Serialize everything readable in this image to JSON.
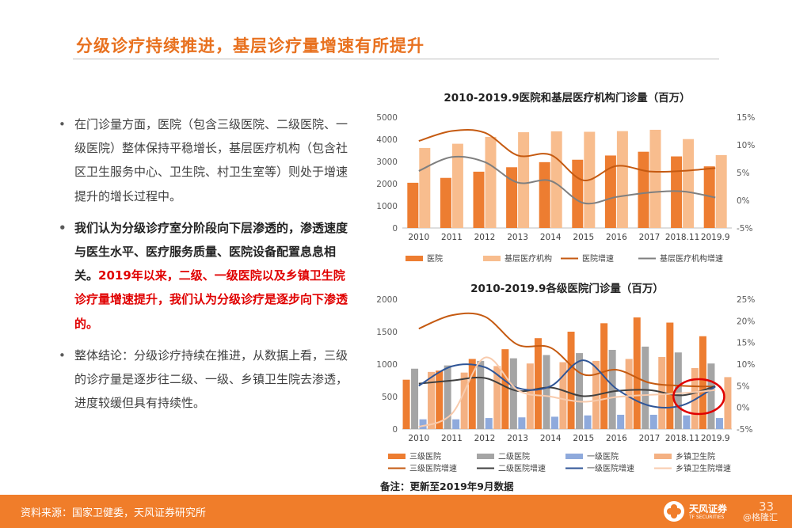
{
  "page": {
    "title": "分级诊疗持续推进，基层诊疗量增速有所提升",
    "bullets": [
      {
        "text": "在门诊量方面，医院（包含三级医院、二级医院、一级医院）整体保持平稳增长，基层医疗机构（包含社区卫生服务中心、卫生院、村卫生室等）则处于增速提升的增长过程中。"
      },
      {
        "text": "我们认为分级诊疗室分阶段向下层渗透的，渗透速度与医生水平、医疗服务质量、医院设备配置息息相关。",
        "highlight": "2019年以来，二级、一级医院以及乡镇卫生院诊疗量增速提升，我们认为分级诊疗是逐步向下渗透的。"
      },
      {
        "text": "整体结论：分级诊疗持续在推进，从数据上看，三级的诊疗量是逐步往二级、一级、乡镇卫生院去渗透，进度较缓但具有持续性。"
      }
    ],
    "note": "备注：更新至2019年9月数据",
    "source": "资料来源：国家卫健委，天风证券研究所",
    "logo_cn": "天风证券",
    "logo_en": "TF SECURITIES",
    "page_number": "33",
    "watermark": "@格隆汇",
    "colors": {
      "accent": "#e8711f",
      "footer": "#f07d2a",
      "highlight_text": "#e00000"
    }
  },
  "chart_data": [
    {
      "type": "bar",
      "title": "2010-2019.9医院和基层医疗机构门诊量（百万）",
      "categories": [
        "2010",
        "2011",
        "2012",
        "2013",
        "2014",
        "2015",
        "2016",
        "2017",
        "2018.11",
        "2019.9"
      ],
      "ylim": [
        0,
        5000
      ],
      "yticks": [
        0,
        1000,
        2000,
        3000,
        4000,
        5000
      ],
      "y2lim": [
        -5,
        15
      ],
      "y2ticks": [
        "-5%",
        "0%",
        "5%",
        "10%",
        "15%"
      ],
      "legend_position": "bottom",
      "series": [
        {
          "name": "医院",
          "kind": "bar",
          "axis": "left",
          "color": "#ed7d31",
          "values": [
            2040,
            2260,
            2540,
            2740,
            2970,
            3080,
            3270,
            3440,
            3230,
            2780
          ]
        },
        {
          "name": "基层医疗机构",
          "kind": "bar",
          "axis": "left",
          "color": "#f8bd8e",
          "values": [
            3610,
            3800,
            4110,
            4320,
            4360,
            4340,
            4370,
            4430,
            4010,
            3290
          ]
        },
        {
          "name": "医院增速",
          "kind": "line",
          "axis": "right",
          "color": "#c55a11",
          "values": [
            10.7,
            12.5,
            12.2,
            8.1,
            8.2,
            3.6,
            6.2,
            5.2,
            5.3,
            5.8
          ]
        },
        {
          "name": "基层医疗机构增速",
          "kind": "line",
          "axis": "right",
          "color": "#7f7f7f",
          "values": [
            5.3,
            7.8,
            6.9,
            3.2,
            3.5,
            -0.5,
            0.6,
            1.4,
            1.6,
            0.5
          ]
        }
      ]
    },
    {
      "type": "bar",
      "title": "2010-2019.9各级医院门诊量（百万）",
      "categories": [
        "2010",
        "2011",
        "2012",
        "2013",
        "2014",
        "2015",
        "2016",
        "2017",
        "2018.11",
        "2019.9"
      ],
      "ylim": [
        0,
        2000
      ],
      "yticks": [
        0,
        500,
        1000,
        1500,
        2000
      ],
      "y2lim": [
        -5,
        25
      ],
      "y2ticks": [
        "-5%",
        "0%",
        "5%",
        "10%",
        "15%",
        "20%",
        "25%"
      ],
      "legend_position": "bottom",
      "series": [
        {
          "name": "三级医院",
          "kind": "bar",
          "axis": "left",
          "color": "#ed7d31",
          "values": [
            760,
            900,
            1080,
            1230,
            1400,
            1500,
            1630,
            1720,
            1640,
            1430
          ]
        },
        {
          "name": "二级医院",
          "kind": "bar",
          "axis": "left",
          "color": "#a5a5a5",
          "values": [
            930,
            980,
            1050,
            1090,
            1140,
            1170,
            1220,
            1270,
            1180,
            1010
          ]
        },
        {
          "name": "一级医院",
          "kind": "bar",
          "axis": "left",
          "color": "#8faadc",
          "values": [
            150,
            150,
            170,
            180,
            190,
            210,
            220,
            220,
            210,
            170
          ]
        },
        {
          "name": "乡镇卫生院",
          "kind": "bar",
          "axis": "left",
          "color": "#f4b183",
          "values": [
            880,
            870,
            970,
            1010,
            1030,
            1050,
            1080,
            1110,
            940,
            800
          ]
        },
        {
          "name": "三级医院增速",
          "kind": "line",
          "axis": "right",
          "color": "#c55a11",
          "values": [
            18.2,
            21.3,
            21.0,
            14.5,
            13.8,
            7.6,
            8.7,
            5.7,
            5.0,
            4.8
          ]
        },
        {
          "name": "二级医院增速",
          "kind": "line",
          "axis": "right",
          "color": "#404040",
          "values": [
            5.5,
            6.2,
            6.8,
            3.8,
            4.6,
            2.6,
            3.8,
            4.0,
            2.8,
            4.9
          ]
        },
        {
          "name": "一级医院增速",
          "kind": "line",
          "axis": "right",
          "color": "#2f5597",
          "values": [
            5.0,
            9.5,
            9.3,
            4.5,
            4.9,
            10.9,
            4.3,
            0.4,
            0.5,
            4.8
          ]
        },
        {
          "name": "乡镇卫生院增速",
          "kind": "line",
          "axis": "right",
          "color": "#f8cbad",
          "values": [
            -4.5,
            -1.5,
            11.5,
            4.0,
            2.5,
            1.3,
            2.4,
            2.9,
            3.3,
            4.0
          ]
        }
      ]
    }
  ]
}
